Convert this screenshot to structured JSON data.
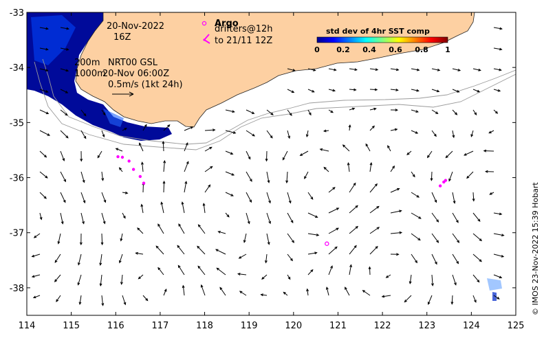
{
  "map": {
    "date_line": "20-Nov-2022",
    "hour_line": "16Z",
    "isobath_200": "200m",
    "isobath_1000": "1000m",
    "product_line": "NRT00 GSL",
    "product_time": "20-Nov 06:00Z",
    "scale_label": "0.5m/s (1kt 24h)",
    "argo_label": "Argo",
    "drifters_label": "drifters@12h",
    "drifters_to": "to 21/11 12Z",
    "credit": "© IMOS 23-Nov-2022 15:39 Hobart",
    "land_color": "#fdd0a2",
    "marker_color": "#ff00ff"
  },
  "colorbar": {
    "title": "std dev of 4hr SST comp",
    "ticks": [
      "0",
      "0.2",
      "0.4",
      "0.6",
      "0.8",
      "1"
    ],
    "colors": [
      "#00008f",
      "#0000ff",
      "#0080ff",
      "#00ffff",
      "#80ff80",
      "#ffff00",
      "#ff8000",
      "#ff0000",
      "#800000"
    ]
  },
  "chart_data": {
    "type": "map",
    "x_axis": {
      "range": [
        114,
        125
      ],
      "ticks": [
        "114",
        "115",
        "116",
        "117",
        "118",
        "119",
        "120",
        "121",
        "122",
        "123",
        "124",
        "125"
      ]
    },
    "y_axis": {
      "range": [
        -38.5,
        -33
      ],
      "ticks": [
        "-33",
        "-34",
        "-35",
        "-36",
        "-37",
        "-38"
      ]
    },
    "argo_floats": [
      {
        "lon": 120.75,
        "lat": -37.2
      }
    ],
    "drifter_tracks": [
      [
        [
          116.05,
          -35.62
        ],
        [
          116.15,
          -35.63
        ],
        [
          116.3,
          -35.7
        ],
        [
          116.4,
          -35.85
        ],
        [
          116.55,
          -35.98
        ],
        [
          116.63,
          -36.1
        ]
      ],
      [
        [
          123.3,
          -36.15
        ],
        [
          123.38,
          -36.08
        ],
        [
          123.42,
          -36.05
        ]
      ]
    ]
  }
}
